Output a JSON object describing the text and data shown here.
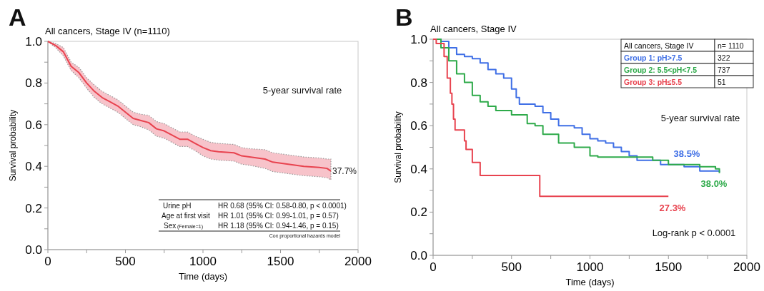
{
  "chart_data": [
    {
      "type": "line",
      "title": "All cancers, Stage IV (n=1110)",
      "xlabel": "Time  (days)",
      "ylabel": "Survival probability",
      "xlim": [
        0,
        2000
      ],
      "xticks": [
        0,
        {
          "value": 250,
          "label": null
        },
        500,
        {
          "value": 750,
          "label": null
        },
        1000,
        {
          "value": 1250,
          "label": null
        },
        1500,
        {
          "value": 1750,
          "label": null
        },
        2000
      ],
      "ylim": [
        0,
        1
      ],
      "yticks": [
        {
          "value": 0,
          "label": "0.0"
        },
        {
          "value": 0.1,
          "label": null
        },
        {
          "value": 0.2,
          "label": "0.2"
        },
        {
          "value": 0.3,
          "label": null
        },
        {
          "value": 0.4,
          "label": "0.4"
        },
        {
          "value": 0.5,
          "label": null
        },
        {
          "value": 0.6,
          "label": "0.6"
        },
        {
          "value": 0.7,
          "label": null
        },
        {
          "value": 0.8,
          "label": "0.8"
        },
        {
          "value": 0.9,
          "label": null
        },
        {
          "value": 1,
          "label": "1.0"
        }
      ],
      "grid": false,
      "series": [
        {
          "color": "#e8434f",
          "x": [
            0,
            50,
            100,
            150,
            200,
            250,
            300,
            350,
            400,
            450,
            500,
            550,
            600,
            650,
            700,
            750,
            800,
            850,
            900,
            950,
            1000,
            1050,
            1100,
            1200,
            1250,
            1300,
            1400,
            1450,
            1550,
            1650,
            1750,
            1800,
            1825
          ],
          "values": [
            1,
            0.98,
            0.95,
            0.88,
            0.85,
            0.8,
            0.76,
            0.73,
            0.71,
            0.69,
            0.66,
            0.63,
            0.62,
            0.61,
            0.58,
            0.57,
            0.55,
            0.53,
            0.53,
            0.51,
            0.49,
            0.475,
            0.47,
            0.465,
            0.45,
            0.445,
            0.435,
            0.42,
            0.41,
            0.4,
            0.395,
            0.39,
            0.377
          ],
          "lower": [
            1,
            0.97,
            0.93,
            0.86,
            0.825,
            0.775,
            0.73,
            0.7,
            0.68,
            0.66,
            0.63,
            0.6,
            0.59,
            0.575,
            0.545,
            0.535,
            0.515,
            0.495,
            0.495,
            0.475,
            0.45,
            0.435,
            0.43,
            0.425,
            0.41,
            0.405,
            0.39,
            0.375,
            0.365,
            0.355,
            0.35,
            0.345,
            0.335
          ],
          "upper": [
            1,
            0.99,
            0.97,
            0.9,
            0.875,
            0.825,
            0.79,
            0.76,
            0.74,
            0.72,
            0.69,
            0.66,
            0.65,
            0.645,
            0.615,
            0.605,
            0.585,
            0.565,
            0.565,
            0.545,
            0.53,
            0.515,
            0.51,
            0.505,
            0.49,
            0.485,
            0.48,
            0.465,
            0.455,
            0.445,
            0.44,
            0.435,
            0.435
          ]
        }
      ],
      "annotations": [
        "A",
        "5-year survival rate",
        "37.7%",
        "Urine pH",
        "HR 0.68 (95% CI: 0.58-0.80, p < 0.0001)",
        "Age at first visit",
        "HR 1.01 (95% CI: 0.99-1.01, p = 0.57)",
        "Sex",
        "(Female=1)",
        "HR 1.18 (95% CI: 0.94-1.46, p = 0.15)",
        "Cox proportional hazards model"
      ]
    },
    {
      "type": "step",
      "title": "All cancers, Stage IV",
      "xlabel": "Time  (days)",
      "ylabel": "Survival probability",
      "xlim": [
        0,
        2000
      ],
      "xticks": [
        0,
        {
          "value": 250,
          "label": null
        },
        500,
        {
          "value": 750,
          "label": null
        },
        1000,
        {
          "value": 1250,
          "label": null
        },
        1500,
        {
          "value": 1750,
          "label": null
        },
        2000
      ],
      "ylim": [
        0,
        1
      ],
      "yticks": [
        {
          "value": 0,
          "label": "0.0"
        },
        {
          "value": 0.1,
          "label": null
        },
        {
          "value": 0.2,
          "label": "0.2"
        },
        {
          "value": 0.3,
          "label": null
        },
        {
          "value": 0.4,
          "label": "0.4"
        },
        {
          "value": 0.5,
          "label": null
        },
        {
          "value": 0.6,
          "label": "0.6"
        },
        {
          "value": 0.7,
          "label": null
        },
        {
          "value": 0.8,
          "label": "0.8"
        },
        {
          "value": 0.9,
          "label": null
        },
        {
          "value": 1,
          "label": "1.0"
        }
      ],
      "grid": false,
      "legend": "top right",
      "legend_title": "All cancers, Stage IV",
      "series": [
        {
          "name": "Group 1: pH>7.5",
          "color": "#3f6fe6",
          "x": [
            0,
            50,
            100,
            150,
            200,
            250,
            300,
            350,
            400,
            450,
            500,
            530,
            550,
            650,
            700,
            750,
            800,
            900,
            950,
            1000,
            1050,
            1100,
            1150,
            1200,
            1250,
            1300,
            1400,
            1450,
            1600,
            1700,
            1825
          ],
          "values": [
            1,
            0.99,
            0.96,
            0.93,
            0.92,
            0.91,
            0.89,
            0.86,
            0.84,
            0.82,
            0.77,
            0.73,
            0.7,
            0.69,
            0.66,
            0.63,
            0.6,
            0.59,
            0.56,
            0.54,
            0.53,
            0.52,
            0.5,
            0.48,
            0.46,
            0.44,
            0.44,
            0.42,
            0.41,
            0.39,
            0.385
          ]
        },
        {
          "name": "Group 2: 5.5<pH<7.5",
          "color": "#2eaa4a",
          "x": [
            0,
            50,
            100,
            150,
            200,
            250,
            300,
            350,
            400,
            500,
            600,
            650,
            700,
            750,
            800,
            900,
            1000,
            1050,
            1250,
            1400,
            1500,
            1700,
            1800,
            1825
          ],
          "values": [
            1,
            0.96,
            0.9,
            0.84,
            0.8,
            0.74,
            0.71,
            0.69,
            0.67,
            0.65,
            0.61,
            0.6,
            0.56,
            0.56,
            0.52,
            0.5,
            0.46,
            0.455,
            0.455,
            0.44,
            0.42,
            0.41,
            0.4,
            0.38
          ]
        },
        {
          "name": "Group 3: pH≤5.5",
          "color": "#e8434f",
          "x": [
            0,
            20,
            70,
            90,
            110,
            120,
            130,
            140,
            200,
            210,
            250,
            300,
            680,
            1500
          ],
          "values": [
            1,
            0.98,
            0.92,
            0.82,
            0.75,
            0.7,
            0.63,
            0.58,
            0.53,
            0.49,
            0.43,
            0.37,
            0.273,
            0.273
          ]
        }
      ],
      "annotations": [
        "B",
        "n= 1110",
        "322",
        "737",
        "51",
        "5-year survival rate",
        "38.5%",
        "38.0%",
        "27.3%",
        "Log-rank p < 0.0001"
      ]
    }
  ]
}
